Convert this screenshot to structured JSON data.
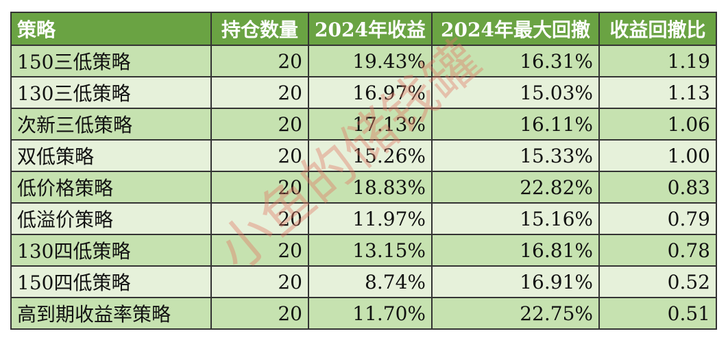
{
  "table": {
    "headers": [
      "策略",
      "持仓数量",
      "2024年收益",
      "2024年最大回撤",
      "收益回撤比"
    ],
    "rows": [
      [
        "150三低策略",
        "20",
        "19.43%",
        "16.31%",
        "1.19"
      ],
      [
        "130三低策略",
        "20",
        "16.97%",
        "15.03%",
        "1.13"
      ],
      [
        "次新三低策略",
        "20",
        "17.13%",
        "16.11%",
        "1.06"
      ],
      [
        "双低策略",
        "20",
        "15.26%",
        "15.33%",
        "1.00"
      ],
      [
        "低价格策略",
        "20",
        "18.83%",
        "22.82%",
        "0.83"
      ],
      [
        "低溢价策略",
        "20",
        "11.97%",
        "15.16%",
        "0.79"
      ],
      [
        "130四低策略",
        "20",
        "13.15%",
        "16.81%",
        "0.78"
      ],
      [
        "150四低策略",
        "20",
        "8.74%",
        "16.91%",
        "0.52"
      ],
      [
        "高到期收益率策略",
        "20",
        "11.70%",
        "22.75%",
        "0.51"
      ]
    ]
  },
  "watermark": "小鱼的储钱罐",
  "colors": {
    "header_bg": "#6aa343",
    "row_dark": "#c6e2b0",
    "row_light": "#e6f1da"
  }
}
